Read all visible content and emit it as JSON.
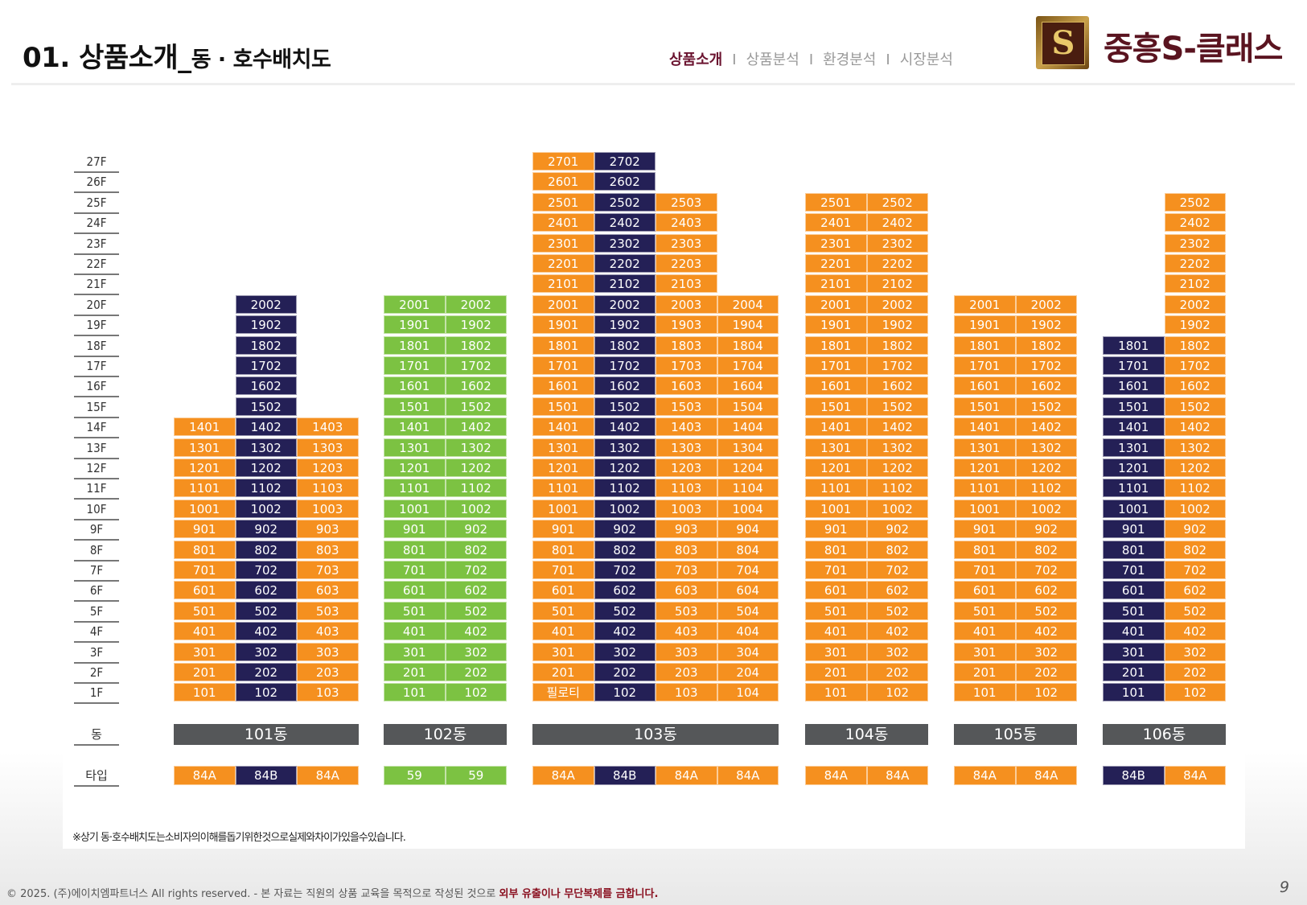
{
  "header": {
    "title_main": "01. 상품소개_",
    "title_sub": "동 · 호수배치도",
    "nav": [
      {
        "label": "상품소개",
        "active": true
      },
      {
        "label": "상품분석",
        "active": false
      },
      {
        "label": "환경분석",
        "active": false
      },
      {
        "label": "시장분석",
        "active": false
      }
    ],
    "logo_mark": "S",
    "logo_text": "중흥S-클래스"
  },
  "floors": [
    "27F",
    "26F",
    "25F",
    "24F",
    "23F",
    "22F",
    "21F",
    "20F",
    "19F",
    "18F",
    "17F",
    "16F",
    "15F",
    "14F",
    "13F",
    "12F",
    "11F",
    "10F",
    "9F",
    "8F",
    "7F",
    "6F",
    "5F",
    "4F",
    "3F",
    "2F",
    "1F"
  ],
  "row_labels": {
    "dong": "동",
    "type": "타입"
  },
  "colors": {
    "84A": "#f5901f",
    "84B": "#242056",
    "59": "#7cc242",
    "dong_bar": "#555759"
  },
  "buildings": [
    {
      "name": "101동",
      "columns": [
        {
          "line": "01",
          "type": "84A",
          "top": 14
        },
        {
          "line": "02",
          "type": "84B",
          "top": 20
        },
        {
          "line": "03",
          "type": "84A",
          "top": 14
        }
      ]
    },
    {
      "name": "102동",
      "columns": [
        {
          "line": "01",
          "type": "59",
          "top": 20
        },
        {
          "line": "02",
          "type": "59",
          "top": 20
        }
      ]
    },
    {
      "name": "103동",
      "columns": [
        {
          "line": "01",
          "type": "84A",
          "top": 27,
          "ground_label": "필로티"
        },
        {
          "line": "02",
          "type": "84B",
          "top": 27
        },
        {
          "line": "03",
          "type": "84A",
          "top": 25
        },
        {
          "line": "04",
          "type": "84A",
          "top": 20
        }
      ]
    },
    {
      "name": "104동",
      "columns": [
        {
          "line": "01",
          "type": "84A",
          "top": 25
        },
        {
          "line": "02",
          "type": "84A",
          "top": 25
        }
      ]
    },
    {
      "name": "105동",
      "columns": [
        {
          "line": "01",
          "type": "84A",
          "top": 20
        },
        {
          "line": "02",
          "type": "84A",
          "top": 20
        }
      ]
    },
    {
      "name": "106동",
      "columns": [
        {
          "line": "01",
          "type": "84B",
          "top": 18
        },
        {
          "line": "02",
          "type": "84A",
          "top": 25
        }
      ]
    }
  ],
  "note": "※상기 동·호수배치도는소비자의이해를돕기위한것으로실제와차이가있을수있습니다.",
  "footer": {
    "copyright": "© 2025. (주)에이치엠파트너스 All rights reserved. - 본 자료는 직원의 상품 교육을 목적으로 작성된 것으로 ",
    "warning": "외부 유출이나 무단복제를 금합니다."
  },
  "page_number": "9"
}
